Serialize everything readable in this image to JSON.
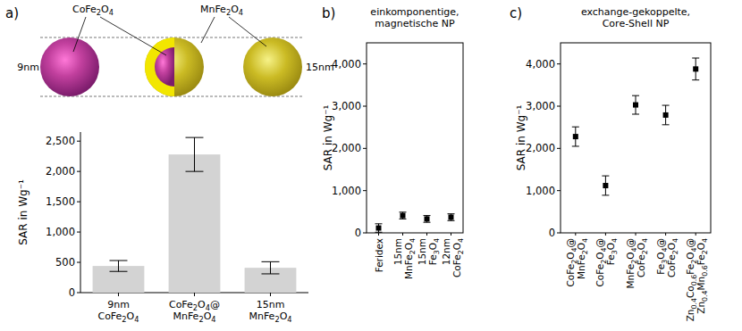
{
  "panel_labels": [
    "a)",
    "b)",
    "c)"
  ],
  "diagram": {
    "core_label": "CoFe2O4",
    "shell_label": "MnFe2O4",
    "core_size": "9nm",
    "shell_size": "15nm"
  },
  "chart_data": [
    {
      "type": "bar",
      "ylabel": "SAR in Wg⁻¹",
      "categories": [
        "9nm\nCoFe2O4",
        "CoFe2O4@\nMnFe2O4",
        "15nm\nMnFe2O4"
      ],
      "values": [
        440,
        2280,
        410
      ],
      "errors": [
        90,
        280,
        100
      ],
      "color": "#d3d3d3",
      "ylim": [
        0,
        2650
      ],
      "yticks": [
        0,
        500,
        {
          "value": 1000,
          "label": "1,000"
        },
        {
          "value": 1500,
          "label": "1,500"
        },
        {
          "value": 2000,
          "label": "2,000"
        },
        {
          "value": 2500,
          "label": "2,500"
        }
      ]
    },
    {
      "type": "scatter",
      "title": "einkomponentige,\nmagnetische NP",
      "ylabel": "SAR in Wg⁻¹",
      "categories": [
        "Feridex",
        "15nm\nMnFe2O4",
        "15nm\nFe3O4",
        "12nm\nCoFe2O4"
      ],
      "values": [
        115,
        410,
        330,
        370
      ],
      "errors": [
        100,
        80,
        80,
        80
      ],
      "color": "#000000",
      "marker": "square",
      "ylim": [
        0,
        4500
      ],
      "yticks": [
        0,
        {
          "value": 1000,
          "label": "1,000"
        },
        {
          "value": 2000,
          "label": "2,000"
        },
        {
          "value": 3000,
          "label": "3,000"
        },
        {
          "value": 4000,
          "label": "4,000"
        }
      ]
    },
    {
      "type": "scatter",
      "title": "exchange-gekoppelte,\nCore-Shell NP",
      "ylabel": "SAR in Wg⁻¹",
      "categories": [
        "CoFe2O4@\nMnFe2O4",
        "CoFe2O4@\nFe3O4",
        "MnFe2O4@\nCoFe2O4",
        "Fe3O4@\nCoFe2O4",
        "Zn0.4Co0.6Fe2O4@\nZn0.4Mn0.6Fe2O4"
      ],
      "values": [
        2280,
        1120,
        3030,
        2790,
        3880
      ],
      "errors": [
        230,
        230,
        220,
        230,
        260
      ],
      "color": "#000000",
      "marker": "square",
      "ylim": [
        0,
        4500
      ],
      "yticks": [
        0,
        {
          "value": 1000,
          "label": "1,000"
        },
        {
          "value": 2000,
          "label": "2,000"
        },
        {
          "value": 3000,
          "label": "3,000"
        },
        {
          "value": 4000,
          "label": "4,000"
        }
      ]
    }
  ]
}
